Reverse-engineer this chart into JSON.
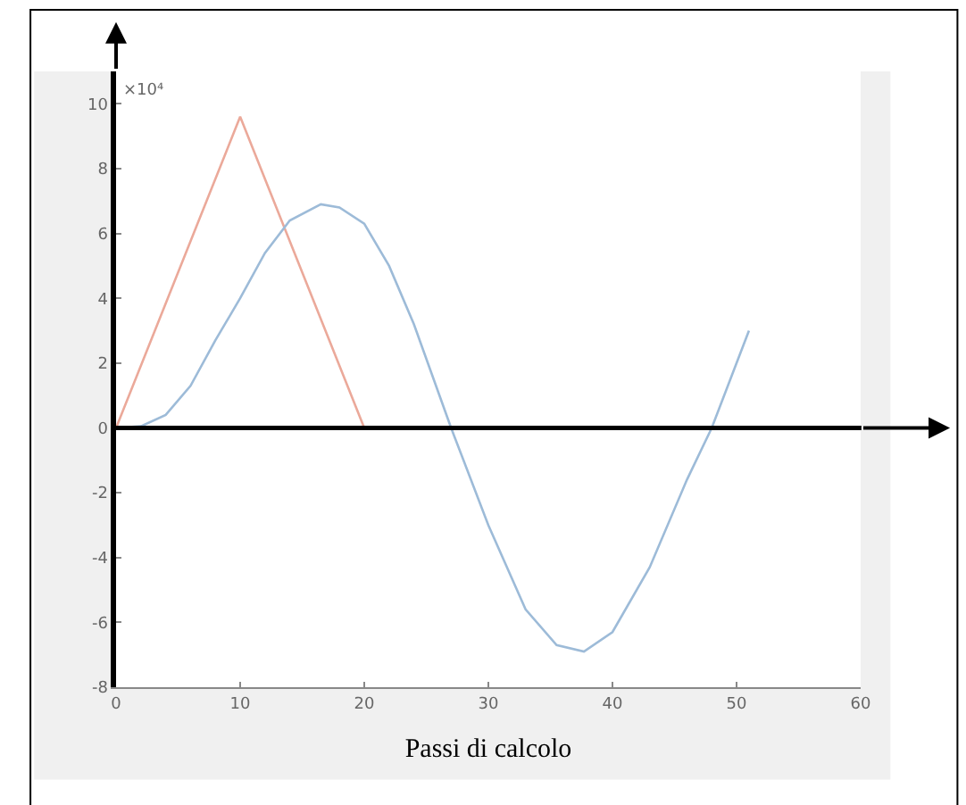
{
  "chart_data": {
    "type": "line",
    "xlabel": "Passi di calcolo",
    "annotations": [
      "×10⁴"
    ],
    "xlim": [
      0,
      60
    ],
    "xticks": [
      0,
      10,
      20,
      30,
      40,
      50,
      60
    ],
    "ylim": [
      -8,
      11
    ],
    "yticks": [
      -8,
      -6,
      -4,
      -2,
      0,
      2,
      4,
      6,
      8,
      10
    ],
    "ref_lines": [
      {
        "axis": "y",
        "value": 0,
        "color": "#000000"
      }
    ],
    "legend": false,
    "marker": "none",
    "line_style": "solid",
    "series": [
      {
        "color": "#eba99a",
        "x": [
          0,
          10,
          20
        ],
        "values": [
          0,
          9.6,
          0
        ]
      },
      {
        "color": "#9dbbd8",
        "x": [
          0,
          2,
          4,
          6,
          8,
          10,
          12,
          14,
          16.5,
          18,
          20,
          22,
          24,
          27,
          30,
          33,
          35.5,
          37.7,
          40,
          43,
          46,
          48,
          51
        ],
        "values": [
          0,
          0.05,
          0.4,
          1.3,
          2.7,
          4.0,
          5.4,
          6.4,
          6.9,
          6.8,
          6.3,
          5.0,
          3.2,
          0,
          -3.0,
          -5.6,
          -6.7,
          -6.9,
          -6.3,
          -4.3,
          -1.6,
          0,
          3.0
        ]
      }
    ]
  }
}
